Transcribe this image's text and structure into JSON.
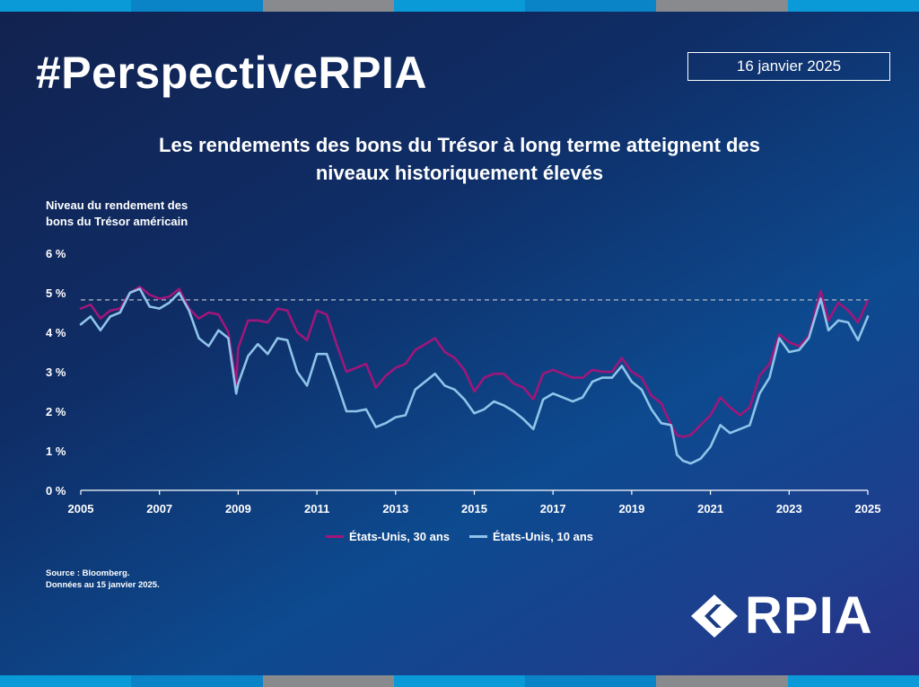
{
  "brand_colors": [
    "#0a9ad8",
    "#0b84c7",
    "#888a8e",
    "#0a9ad8",
    "#0b84c7",
    "#888a8e",
    "#0a9ad8"
  ],
  "hashtag": "#PerspectiveRPIA",
  "date": "16 janvier 2025",
  "title_line1": "Les rendements des bons du Trésor à long terme atteignent des",
  "title_line2": "niveaux historiquement élevés",
  "ylabel_line1": "Niveau du rendement des",
  "ylabel_line2": "bons du Trésor américain",
  "source_line1": "Source : Bloomberg.",
  "source_line2": "Données au 15 janvier 2025.",
  "logo_text": "RPIA",
  "logo_icon": "rpia-chevron-icon",
  "chart_data": {
    "type": "line",
    "xlabel": "",
    "ylabel": "Niveau du rendement des bons du Trésor américain",
    "xlim": [
      2005,
      2025
    ],
    "ylim": [
      0,
      6
    ],
    "x_ticks": [
      "2005",
      "2007",
      "2009",
      "2011",
      "2013",
      "2015",
      "2017",
      "2019",
      "2021",
      "2023",
      "2025"
    ],
    "y_ticks": [
      "0 %",
      "1 %",
      "2 %",
      "3 %",
      "4 %",
      "5 %",
      "6 %"
    ],
    "reference_line": 4.82,
    "grid": false,
    "legend_position": "bottom",
    "series": [
      {
        "name": "États-Unis, 30 ans",
        "color": "#a0167a",
        "x": [
          2005.0,
          2005.25,
          2005.5,
          2005.75,
          2006.0,
          2006.25,
          2006.5,
          2006.75,
          2007.0,
          2007.25,
          2007.5,
          2007.75,
          2008.0,
          2008.25,
          2008.5,
          2008.75,
          2008.95,
          2009.0,
          2009.25,
          2009.5,
          2009.75,
          2010.0,
          2010.25,
          2010.5,
          2010.75,
          2011.0,
          2011.25,
          2011.5,
          2011.75,
          2012.0,
          2012.25,
          2012.5,
          2012.75,
          2013.0,
          2013.25,
          2013.5,
          2013.75,
          2014.0,
          2014.25,
          2014.5,
          2014.75,
          2015.0,
          2015.25,
          2015.5,
          2015.75,
          2016.0,
          2016.25,
          2016.5,
          2016.75,
          2017.0,
          2017.25,
          2017.5,
          2017.75,
          2018.0,
          2018.25,
          2018.5,
          2018.75,
          2019.0,
          2019.25,
          2019.5,
          2019.75,
          2020.0,
          2020.15,
          2020.3,
          2020.5,
          2020.75,
          2021.0,
          2021.25,
          2021.5,
          2021.75,
          2022.0,
          2022.25,
          2022.5,
          2022.75,
          2023.0,
          2023.25,
          2023.5,
          2023.8,
          2024.0,
          2024.25,
          2024.5,
          2024.75,
          2025.0
        ],
        "values": [
          4.6,
          4.7,
          4.35,
          4.55,
          4.6,
          5.0,
          5.15,
          4.95,
          4.85,
          4.9,
          5.1,
          4.6,
          4.35,
          4.5,
          4.45,
          4.0,
          2.7,
          3.6,
          4.3,
          4.3,
          4.25,
          4.6,
          4.55,
          4.0,
          3.8,
          4.55,
          4.45,
          3.7,
          3.0,
          3.1,
          3.2,
          2.6,
          2.9,
          3.1,
          3.2,
          3.55,
          3.7,
          3.85,
          3.5,
          3.35,
          3.05,
          2.5,
          2.85,
          2.95,
          2.95,
          2.7,
          2.6,
          2.3,
          2.95,
          3.05,
          2.95,
          2.85,
          2.85,
          3.05,
          3.0,
          3.0,
          3.35,
          3.0,
          2.85,
          2.4,
          2.2,
          1.65,
          1.4,
          1.35,
          1.4,
          1.65,
          1.9,
          2.35,
          2.1,
          1.9,
          2.1,
          2.9,
          3.2,
          3.95,
          3.75,
          3.65,
          3.9,
          5.05,
          4.3,
          4.75,
          4.55,
          4.25,
          4.8
        ]
      },
      {
        "name": "États-Unis, 10 ans",
        "color": "#8fc4ea",
        "x": [
          2005.0,
          2005.25,
          2005.5,
          2005.75,
          2006.0,
          2006.25,
          2006.5,
          2006.75,
          2007.0,
          2007.25,
          2007.5,
          2007.75,
          2008.0,
          2008.25,
          2008.5,
          2008.75,
          2008.95,
          2009.0,
          2009.25,
          2009.5,
          2009.75,
          2010.0,
          2010.25,
          2010.5,
          2010.75,
          2011.0,
          2011.25,
          2011.5,
          2011.75,
          2012.0,
          2012.25,
          2012.5,
          2012.75,
          2013.0,
          2013.25,
          2013.5,
          2013.75,
          2014.0,
          2014.25,
          2014.5,
          2014.75,
          2015.0,
          2015.25,
          2015.5,
          2015.75,
          2016.0,
          2016.25,
          2016.5,
          2016.75,
          2017.0,
          2017.25,
          2017.5,
          2017.75,
          2018.0,
          2018.25,
          2018.5,
          2018.75,
          2019.0,
          2019.25,
          2019.5,
          2019.75,
          2020.0,
          2020.15,
          2020.3,
          2020.5,
          2020.75,
          2021.0,
          2021.25,
          2021.5,
          2021.75,
          2022.0,
          2022.25,
          2022.5,
          2022.75,
          2023.0,
          2023.25,
          2023.5,
          2023.8,
          2024.0,
          2024.25,
          2024.5,
          2024.75,
          2025.0
        ],
        "values": [
          4.2,
          4.4,
          4.05,
          4.4,
          4.5,
          5.0,
          5.1,
          4.65,
          4.6,
          4.75,
          5.0,
          4.55,
          3.85,
          3.65,
          4.05,
          3.85,
          2.45,
          2.7,
          3.4,
          3.7,
          3.45,
          3.85,
          3.8,
          3.0,
          2.65,
          3.45,
          3.45,
          2.75,
          2.0,
          2.0,
          2.05,
          1.6,
          1.7,
          1.85,
          1.9,
          2.55,
          2.75,
          2.95,
          2.65,
          2.55,
          2.3,
          1.95,
          2.05,
          2.25,
          2.15,
          2.0,
          1.8,
          1.55,
          2.3,
          2.45,
          2.35,
          2.25,
          2.35,
          2.75,
          2.85,
          2.85,
          3.15,
          2.75,
          2.55,
          2.05,
          1.7,
          1.65,
          0.9,
          0.75,
          0.68,
          0.8,
          1.1,
          1.65,
          1.45,
          1.55,
          1.65,
          2.45,
          2.85,
          3.85,
          3.5,
          3.55,
          3.85,
          4.85,
          4.05,
          4.3,
          4.25,
          3.8,
          4.4
        ]
      }
    ]
  }
}
